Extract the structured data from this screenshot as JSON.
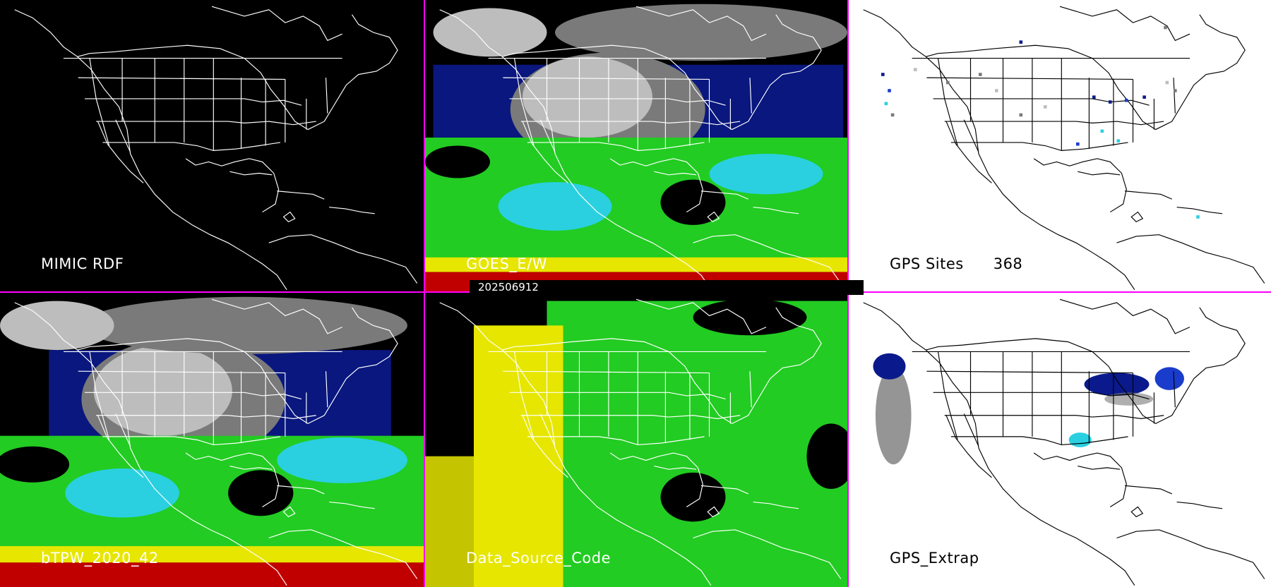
{
  "panels": {
    "mimic_rdf": {
      "label": "MIMIC RDF",
      "background": "#000000"
    },
    "goes_ew": {
      "label": "GOES_E/W",
      "background": "#000000"
    },
    "gps_sites": {
      "label": "GPS Sites",
      "count": "368",
      "background": "#ffffff"
    },
    "btpw": {
      "label": "bTPW_2020_42",
      "background": "#000000"
    },
    "data_source_code": {
      "label": "Data_Source_Code",
      "background": "#000000"
    },
    "gps_extrap": {
      "label": "GPS_Extrap",
      "background": "#ffffff"
    }
  },
  "timestamp": "202506912",
  "colors": {
    "divider": "#ff00ff",
    "map_lines_dark": "#ffffff",
    "map_lines_light": "#000000",
    "tpw_scale": [
      "#ffffff",
      "#bdbdbd",
      "#7a7a7a",
      "#0a1a8c",
      "#1a3ccc",
      "#2ad0e0",
      "#22cc22",
      "#7fe020",
      "#e6e600",
      "#f0a000",
      "#c00000"
    ]
  }
}
